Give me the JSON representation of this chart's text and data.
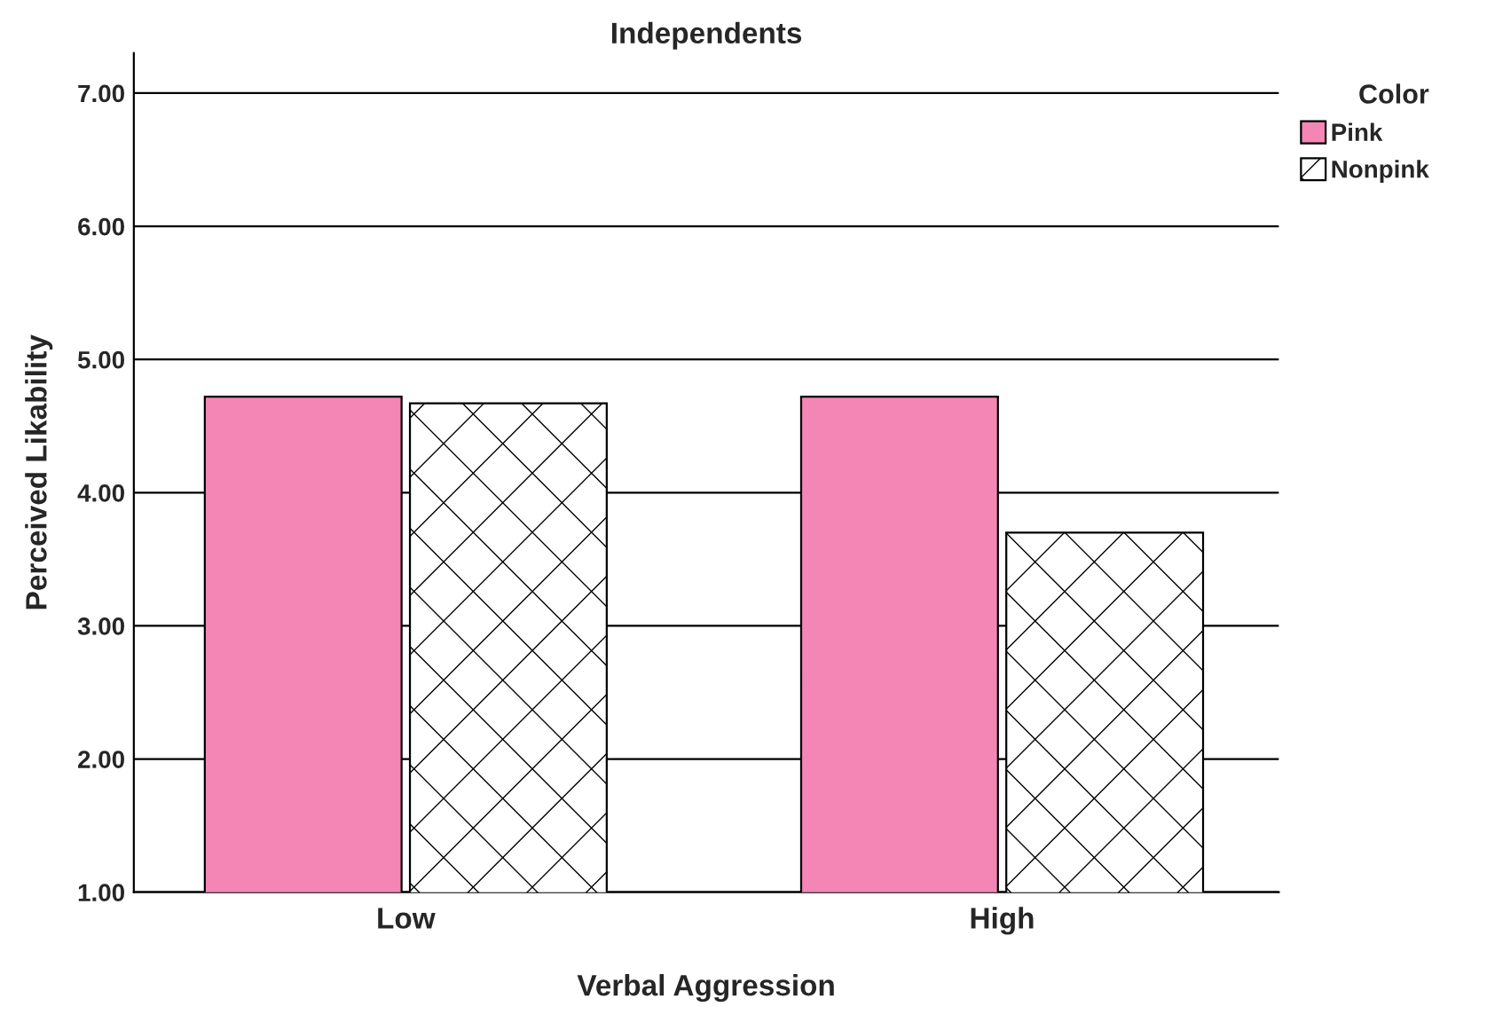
{
  "chart_data": {
    "type": "bar",
    "title": "Independents",
    "xlabel": "Verbal Aggression",
    "ylabel": "Perceived Likability",
    "legend_title": "Color",
    "categories": [
      "Low",
      "High"
    ],
    "series": [
      {
        "name": "Pink",
        "color": "#f386b5",
        "values": [
          4.72,
          4.72
        ]
      },
      {
        "name": "Nonpink",
        "color": "#000000",
        "values": [
          4.67,
          3.7
        ]
      }
    ],
    "ylim": [
      1,
      7.3
    ],
    "yticks": [
      {
        "value": 1,
        "label": "1.00"
      },
      {
        "value": 2,
        "label": "2.00"
      },
      {
        "value": 3,
        "label": "3.00"
      },
      {
        "value": 4,
        "label": "4.00"
      },
      {
        "value": 5,
        "label": "5.00"
      },
      {
        "value": 6,
        "label": "6.00"
      },
      {
        "value": 7,
        "label": "7.00"
      }
    ],
    "grid": "y",
    "legend": "top right"
  }
}
